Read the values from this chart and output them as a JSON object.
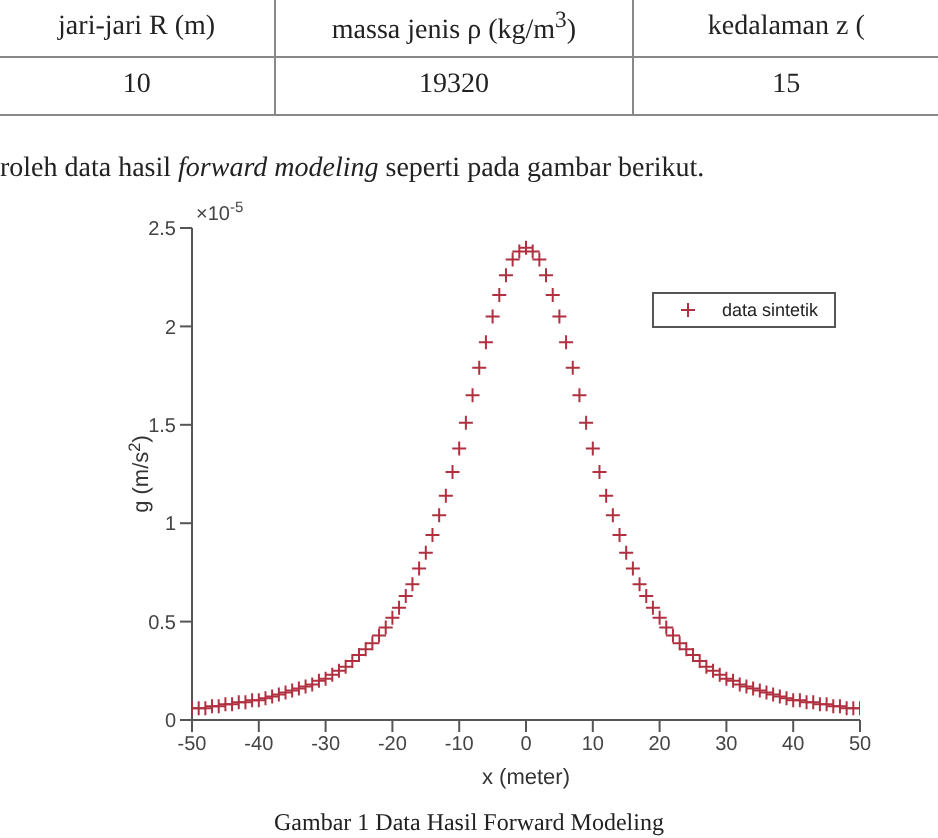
{
  "chart_data": {
    "type": "scatter",
    "annotations": [
      "jari-jari R (m)",
      "massa jenis ρ (kg/m$^{3}$)",
      "kedalaman z (",
      "10",
      "19320",
      "15",
      "roleh data hasil ",
      "forward modeling",
      " seperti pada gambar berikut.",
      "×10$^{-5}$",
      "Gambar 1 Data Hasil Forward Modeling"
    ],
    "xlabel": "x (meter)",
    "ylabel": "g (m/s$^{2}$)",
    "x": [
      -50,
      -49,
      -48,
      -47,
      -46,
      -45,
      -44,
      -43,
      -42,
      -41,
      -40,
      -39,
      -38,
      -37,
      -36,
      -35,
      -34,
      -33,
      -32,
      -31,
      -30,
      -29,
      -28,
      -27,
      -26,
      -25,
      -24,
      -23,
      -22,
      -21,
      -20,
      -19,
      -18,
      -17,
      -16,
      -15,
      -14,
      -13,
      -12,
      -11,
      -10,
      -9,
      -8,
      -7,
      -6,
      -5,
      -4,
      -3,
      -2,
      -1,
      0,
      1,
      2,
      3,
      4,
      5,
      6,
      7,
      8,
      9,
      10,
      11,
      12,
      13,
      14,
      15,
      16,
      17,
      18,
      19,
      20,
      21,
      22,
      23,
      24,
      25,
      26,
      27,
      28,
      29,
      30,
      31,
      32,
      33,
      34,
      35,
      36,
      37,
      38,
      39,
      40,
      41,
      42,
      43,
      44,
      45,
      46,
      47,
      48,
      49,
      50
    ],
    "series": [
      {
        "name": "data sintetik",
        "color": "#b03040",
        "values": [
          0.06,
          0.06,
          0.06,
          0.07,
          0.07,
          0.08,
          0.08,
          0.09,
          0.09,
          0.1,
          0.1,
          0.11,
          0.12,
          0.13,
          0.14,
          0.15,
          0.16,
          0.17,
          0.18,
          0.2,
          0.21,
          0.23,
          0.25,
          0.27,
          0.3,
          0.33,
          0.36,
          0.39,
          0.43,
          0.47,
          0.52,
          0.57,
          0.63,
          0.69,
          0.77,
          0.85,
          0.94,
          1.04,
          1.14,
          1.26,
          1.38,
          1.51,
          1.65,
          1.79,
          1.92,
          2.05,
          2.16,
          2.26,
          2.34,
          2.38,
          2.4,
          2.38,
          2.34,
          2.26,
          2.16,
          2.05,
          1.92,
          1.79,
          1.65,
          1.51,
          1.38,
          1.26,
          1.14,
          1.04,
          0.94,
          0.85,
          0.77,
          0.69,
          0.63,
          0.57,
          0.52,
          0.47,
          0.43,
          0.39,
          0.36,
          0.33,
          0.3,
          0.27,
          0.25,
          0.23,
          0.21,
          0.2,
          0.18,
          0.17,
          0.16,
          0.15,
          0.14,
          0.13,
          0.12,
          0.11,
          0.1,
          0.1,
          0.09,
          0.09,
          0.08,
          0.08,
          0.07,
          0.07,
          0.06,
          0.06,
          0.06
        ]
      }
    ],
    "xlim": [
      -50,
      50
    ],
    "xticks": [
      -50,
      -40,
      -30,
      -20,
      -10,
      0,
      10,
      20,
      30,
      40,
      50
    ],
    "ylim": [
      0,
      2.5
    ],
    "yticks": [
      0,
      0.5,
      1,
      1.5,
      2,
      2.5
    ],
    "marker": "cross",
    "legend": "top right",
    "grid": false
  }
}
